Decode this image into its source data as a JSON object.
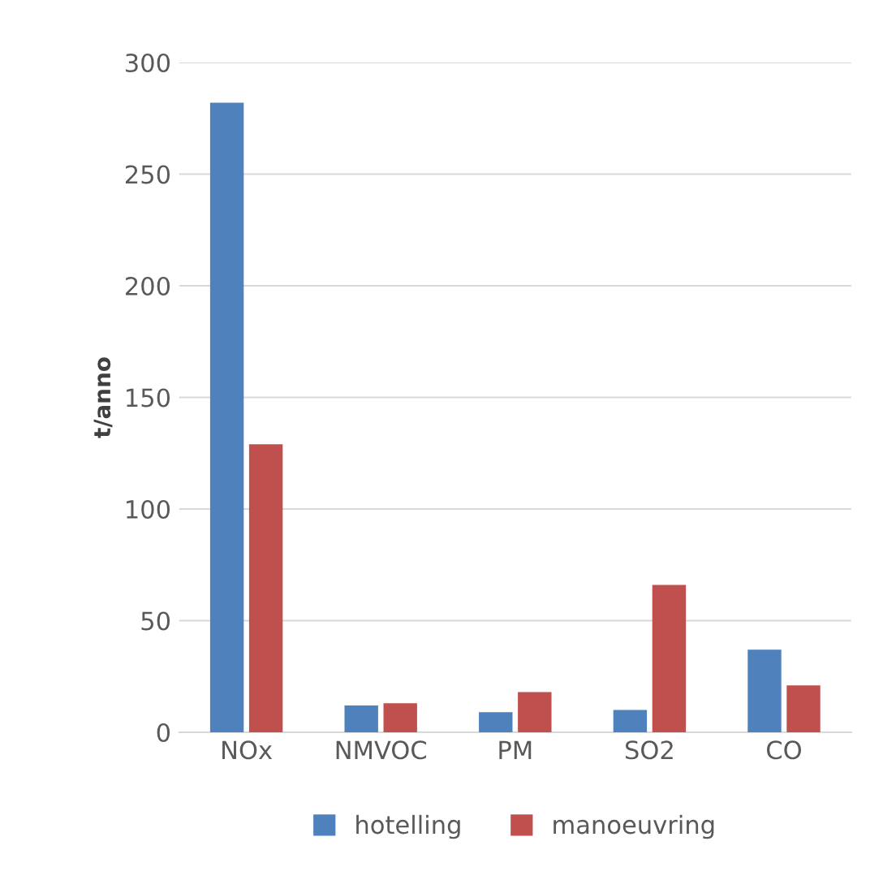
{
  "chart_data": {
    "type": "bar",
    "ylabel": "t/anno",
    "categories": [
      "NOx",
      "NMVOC",
      "PM",
      "SO2",
      "CO"
    ],
    "series": [
      {
        "name": "hotelling",
        "color": "#4f81bd",
        "values": [
          282,
          12,
          9,
          10,
          37
        ]
      },
      {
        "name": "manoeuvring",
        "color": "#c0504d",
        "values": [
          129,
          13,
          18,
          66,
          21
        ]
      }
    ],
    "ylim": [
      0,
      300
    ],
    "yticks": [
      0,
      50,
      100,
      150,
      200,
      250,
      300
    ],
    "grid": "y",
    "legend": "bottom"
  }
}
